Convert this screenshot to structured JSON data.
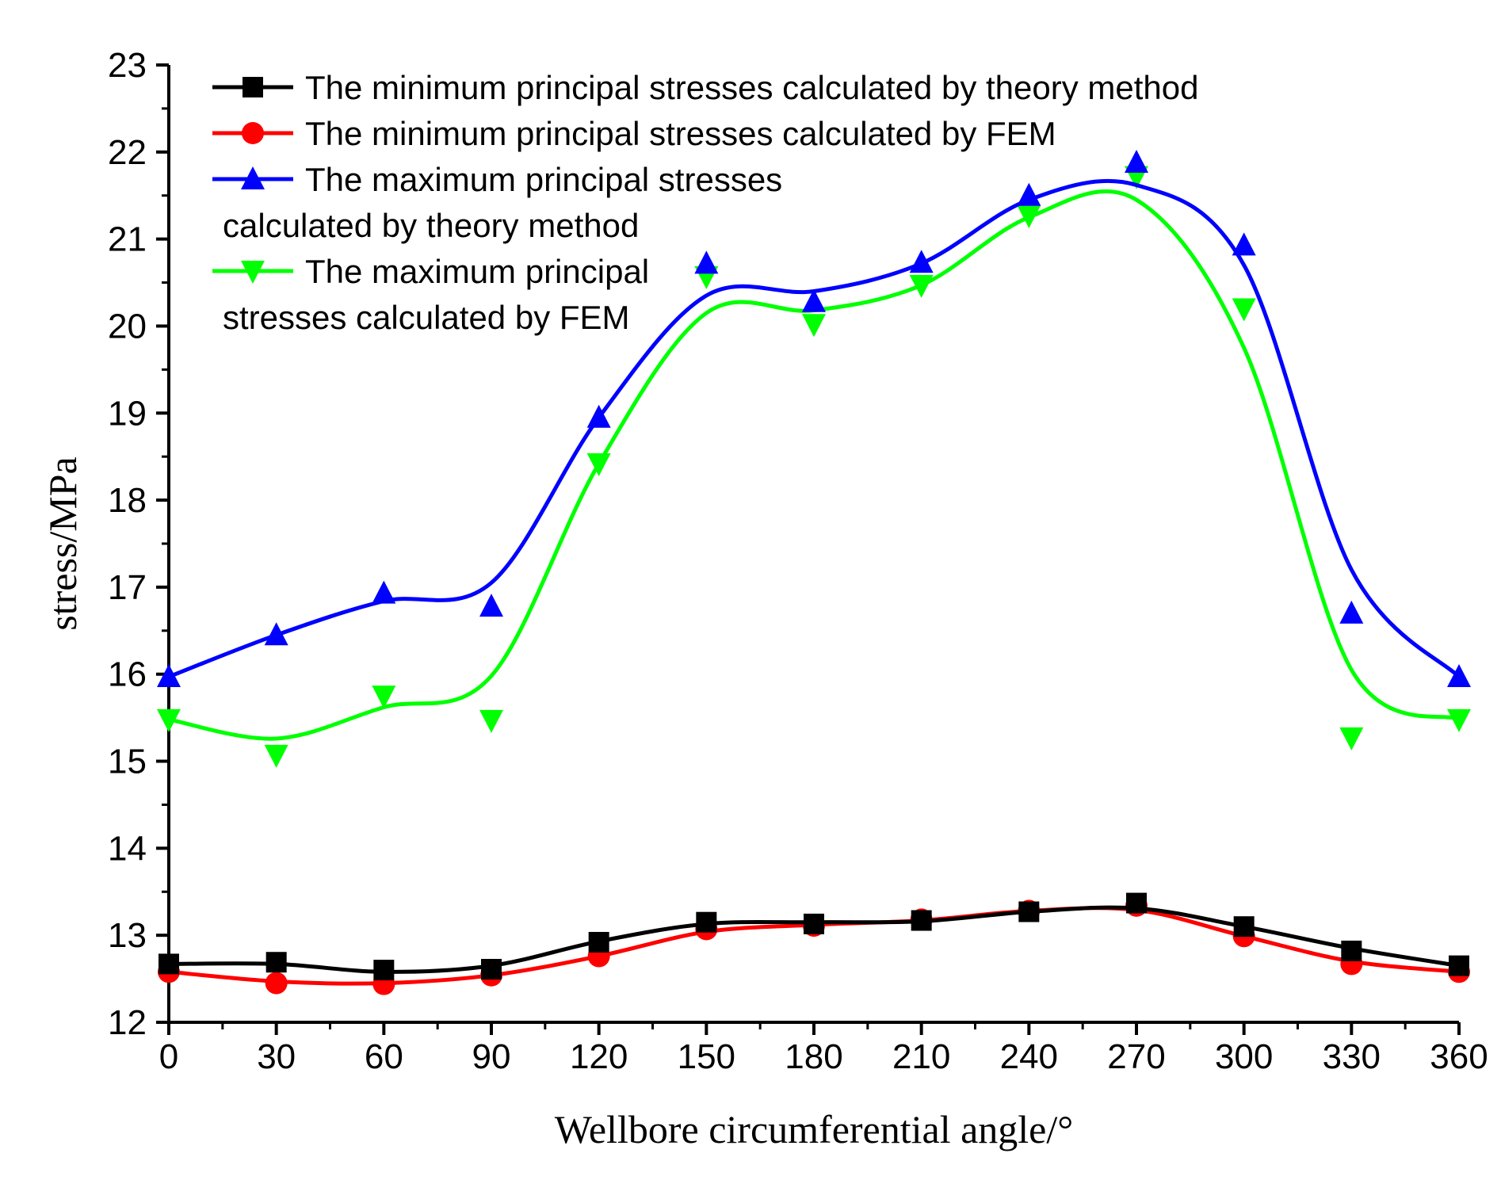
{
  "chart_data": {
    "type": "line",
    "xlabel": "Wellbore circumferential angle/°",
    "ylabel": "stress/MPa",
    "xlim": [
      0,
      360
    ],
    "ylim": [
      12,
      23
    ],
    "xticks": [
      0,
      30,
      60,
      90,
      120,
      150,
      180,
      210,
      240,
      270,
      300,
      330,
      360
    ],
    "yticks": [
      12,
      13,
      14,
      15,
      16,
      17,
      18,
      19,
      20,
      21,
      22,
      23
    ],
    "grid": false,
    "legend_position": "top-left",
    "x": [
      0,
      30,
      60,
      90,
      120,
      150,
      180,
      210,
      240,
      270,
      300,
      330,
      360
    ],
    "series": [
      {
        "name_lines": [
          "The  minimum principal stresses calculated by theory method"
        ],
        "color": "#000000",
        "marker": "square",
        "values": [
          12.67,
          12.69,
          12.6,
          12.61,
          12.92,
          13.15,
          13.13,
          13.17,
          13.27,
          13.37,
          13.1,
          12.82,
          12.65
        ],
        "smooth": [
          12.67,
          12.67,
          12.58,
          12.65,
          12.93,
          13.13,
          13.15,
          13.16,
          13.27,
          13.31,
          13.1,
          12.85,
          12.65
        ]
      },
      {
        "name_lines": [
          "The  minimum principal stresses calculated by FEM"
        ],
        "color": "#ff0000",
        "marker": "circle",
        "values": [
          12.58,
          12.45,
          12.44,
          12.54,
          12.76,
          13.07,
          13.11,
          13.18,
          13.28,
          13.34,
          12.99,
          12.67,
          12.58
        ],
        "smooth": [
          12.58,
          12.47,
          12.45,
          12.54,
          12.76,
          13.04,
          13.12,
          13.17,
          13.28,
          13.29,
          12.99,
          12.7,
          12.58
        ]
      },
      {
        "name_lines": [
          "The maximum  principal stresses",
          "calculated by theory method"
        ],
        "color": "#0000ff",
        "marker": "triangle-up",
        "values": [
          15.97,
          16.45,
          16.93,
          16.78,
          18.95,
          20.72,
          20.28,
          20.73,
          21.5,
          21.88,
          20.93,
          16.7,
          15.97
        ],
        "smooth": [
          15.97,
          16.45,
          16.84,
          17.05,
          18.95,
          20.35,
          20.4,
          20.72,
          21.45,
          21.62,
          20.7,
          17.2,
          15.97
        ]
      },
      {
        "name_lines": [
          "The maximum  principal",
          "stresses calculated by FEM"
        ],
        "color": "#00ff00",
        "marker": "triangle-down",
        "values": [
          15.48,
          15.07,
          15.75,
          15.47,
          18.42,
          20.57,
          20.02,
          20.47,
          21.27,
          21.72,
          20.2,
          15.27,
          15.48
        ],
        "smooth": [
          15.48,
          15.26,
          15.62,
          15.98,
          18.42,
          20.15,
          20.18,
          20.47,
          21.25,
          21.45,
          19.75,
          16.05,
          15.48
        ]
      }
    ]
  }
}
